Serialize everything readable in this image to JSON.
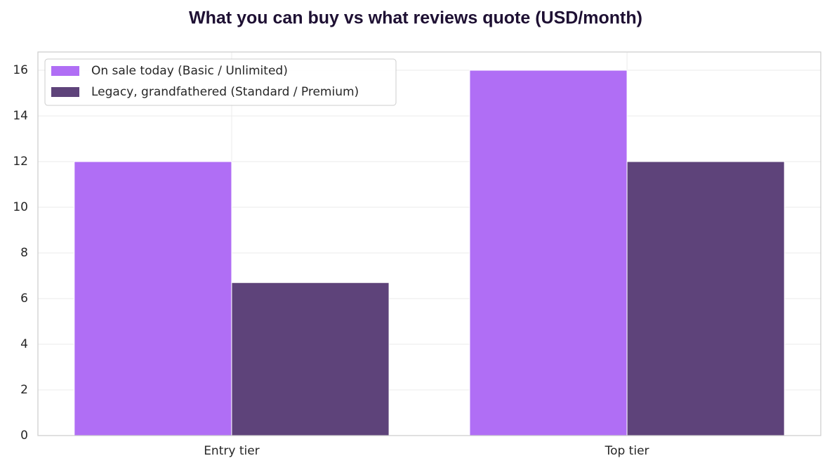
{
  "chart_data": {
    "type": "bar",
    "title": "What you can buy vs what reviews quote (USD/month)",
    "categories": [
      "Entry tier",
      "Top tier"
    ],
    "series": [
      {
        "name": "On sale today (Basic / Unlimited)",
        "color": "#b06ef5",
        "values": [
          12,
          16
        ]
      },
      {
        "name": "Legacy, grandfathered (Standard / Premium)",
        "color": "#5e437a",
        "values": [
          6.7,
          12
        ]
      }
    ],
    "ylim": [
      0,
      16.8
    ],
    "yticks": [
      0,
      2,
      4,
      6,
      8,
      10,
      12,
      14,
      16
    ],
    "grid": true,
    "legend": "upper-left"
  }
}
